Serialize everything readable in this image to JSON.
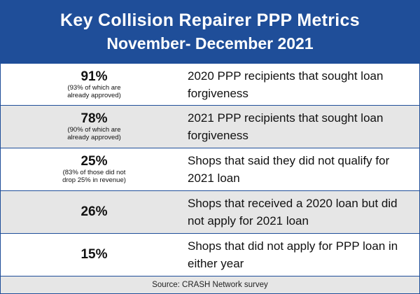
{
  "chart_data": {
    "type": "table",
    "title": "Key Collision Repairer PPP Metrics",
    "subtitle": "November- December 2021",
    "rows": [
      {
        "value": "91%",
        "note": "(93% of which are\nalready approved)",
        "description": "2020 PPP recipients that sought loan forgiveness"
      },
      {
        "value": "78%",
        "note": "(90% of which are\nalready approved)",
        "description": "2021 PPP recipients that sought loan forgiveness"
      },
      {
        "value": "25%",
        "note": "(83% of those did not\ndrop 25% in revenue)",
        "description": "Shops that said they did not qualify for 2021 loan"
      },
      {
        "value": "26%",
        "note": "",
        "description": "Shops that received a 2020 loan but did not apply for 2021 loan"
      },
      {
        "value": "15%",
        "note": "",
        "description": "Shops that did not apply for PPP loan in either year"
      }
    ],
    "source": "Source: CRASH Network survey"
  },
  "colors": {
    "header_background": "#1f4e99",
    "border": "#1f4e99",
    "shaded_row": "#e6e6e6"
  }
}
